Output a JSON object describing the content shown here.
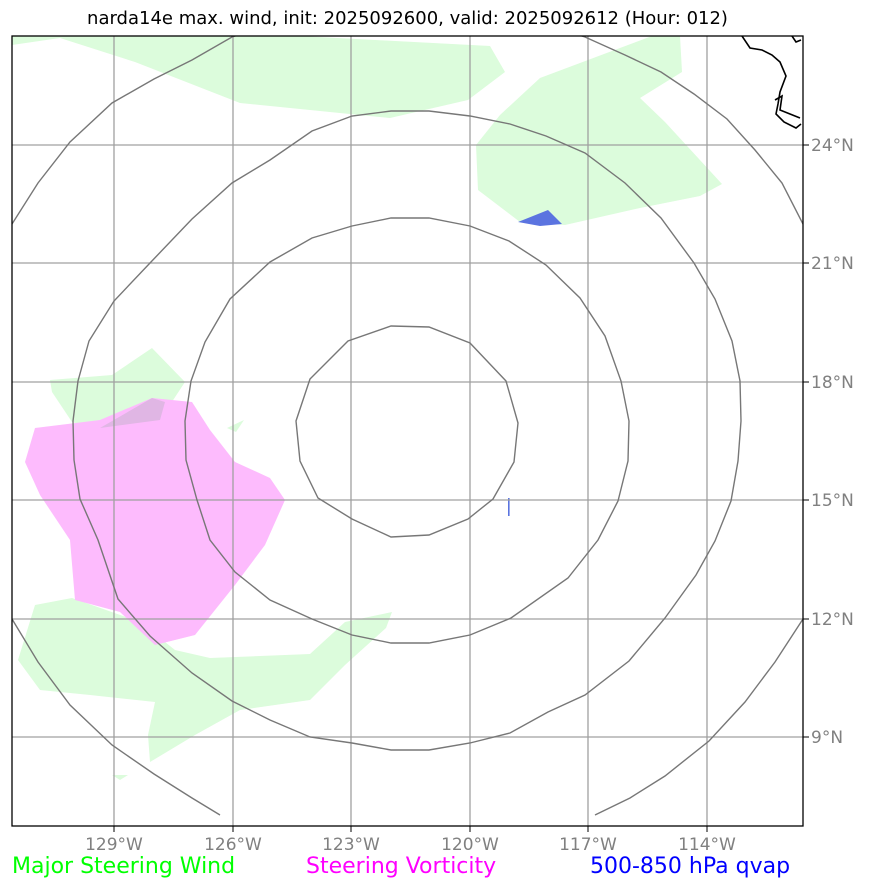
{
  "title": "narda14e max. wind, init: 2025092600, valid: 2025092612 (Hour: 012)",
  "map": {
    "lat_labels": [
      "24°N",
      "21°N",
      "18°N",
      "15°N",
      "12°N",
      "9°N"
    ],
    "lon_labels": [
      "129°W",
      "126°W",
      "123°W",
      "120°W",
      "117°W",
      "114°W"
    ],
    "lat_range": [
      6.9,
      26.9
    ],
    "lon_range": [
      -131.6,
      -111.6
    ],
    "storm_center": {
      "lon": -121.0,
      "lat": 16.5
    },
    "range_ring_count": 4
  },
  "legend": [
    {
      "label": "Major Steering Wind",
      "color": "#00ff00"
    },
    {
      "label": "Steering Vorticity",
      "color": "#ff00ff"
    },
    {
      "label": "500-850 hPa qvap",
      "color": "#0000ff"
    }
  ],
  "colors": {
    "wind_fill": "#dcfcdc",
    "vorticity_fill": "#fdbbfd",
    "qvap_fill": "#5b74e0",
    "grid": "#a0a0a0",
    "rings": "#777777",
    "coastline": "#000000"
  }
}
